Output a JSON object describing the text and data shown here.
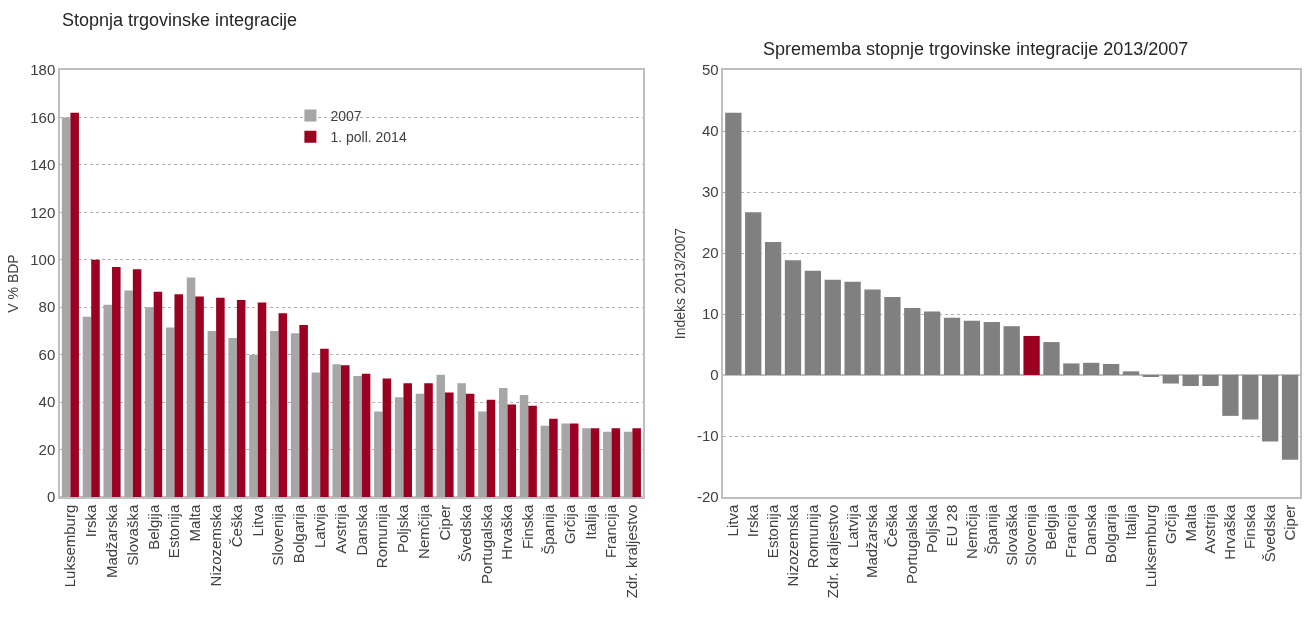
{
  "chart_data": [
    {
      "type": "bar",
      "title": "Stopnja trgovinske integracije",
      "ylabel": "V % BDP",
      "categories": [
        "Luksemburg",
        "Irska",
        "Madžarska",
        "Slovaška",
        "Belgija",
        "Estonija",
        "Malta",
        "Nizozemska",
        "Češka",
        "Litva",
        "Slovenija",
        "Bolgarija",
        "Latvija",
        "Avstrija",
        "Danska",
        "Romunija",
        "Poljska",
        "Nemčija",
        "Ciper",
        "Švedska",
        "Portugalska",
        "Hrvaška",
        "Finska",
        "Španija",
        "Grčija",
        "Italija",
        "Francija",
        "Zdr. kraljestvo"
      ],
      "series": [
        {
          "name": "2007",
          "color": "#a6a6a6",
          "values": [
            160,
            76,
            81,
            87,
            80,
            71.5,
            92.5,
            70,
            67,
            60,
            70,
            69,
            52.5,
            56,
            51,
            36,
            42,
            43.5,
            51.5,
            48,
            36,
            46,
            43,
            30,
            31,
            29,
            27.5,
            27.5
          ]
        },
        {
          "name": "1. poll. 2014",
          "color": "#9b0020",
          "values": [
            162,
            100,
            97,
            96,
            86.5,
            85.5,
            84.5,
            84,
            83,
            82,
            77.5,
            72.5,
            62.5,
            55.5,
            52,
            50,
            48,
            48,
            44,
            43.5,
            41,
            39,
            38.5,
            33,
            31,
            29,
            29,
            29
          ]
        }
      ],
      "ylim": [
        0,
        180
      ],
      "yticks": [
        0,
        20,
        40,
        60,
        80,
        100,
        120,
        140,
        160,
        180
      ],
      "grid": "y",
      "legend": "top"
    },
    {
      "type": "bar",
      "title": "Sprememba stopnje trgovinske integracije 2013/2007",
      "ylabel": "Indeks 2013/2007",
      "categories": [
        "Litva",
        "Irska",
        "Estonija",
        "Nizozemska",
        "Romunija",
        "Zdr. kraljestvo",
        "Latvija",
        "Madžarska",
        "Češka",
        "Portugalska",
        "Poljska",
        "EU 28",
        "Nemčija",
        "Španija",
        "Slovaška",
        "Slovenija",
        "Belgija",
        "Francija",
        "Danska",
        "Bolgarija",
        "Italija",
        "Luksemburg",
        "Grčija",
        "Malta",
        "Avstrija",
        "Hrvaška",
        "Finska",
        "Švedska",
        "Ciper"
      ],
      "values": [
        43,
        26.7,
        21.8,
        18.8,
        17.1,
        15.6,
        15.3,
        14,
        12.8,
        11,
        10.4,
        9.4,
        8.9,
        8.7,
        8,
        6.4,
        5.4,
        1.9,
        2,
        1.8,
        0.6,
        -0.2,
        -1.4,
        -1.8,
        -1.8,
        -6.7,
        -7.3,
        -10.9,
        -13.9
      ],
      "colors": [
        "#808080",
        "#808080",
        "#808080",
        "#808080",
        "#808080",
        "#808080",
        "#808080",
        "#808080",
        "#808080",
        "#808080",
        "#808080",
        "#808080",
        "#808080",
        "#808080",
        "#808080",
        "#9b0020",
        "#808080",
        "#808080",
        "#808080",
        "#808080",
        "#808080",
        "#808080",
        "#808080",
        "#808080",
        "#808080",
        "#808080",
        "#808080",
        "#808080",
        "#808080"
      ],
      "ylim": [
        -20,
        50
      ],
      "yticks": [
        -20,
        -10,
        0,
        10,
        20,
        30,
        40,
        50
      ],
      "grid": "y"
    }
  ]
}
